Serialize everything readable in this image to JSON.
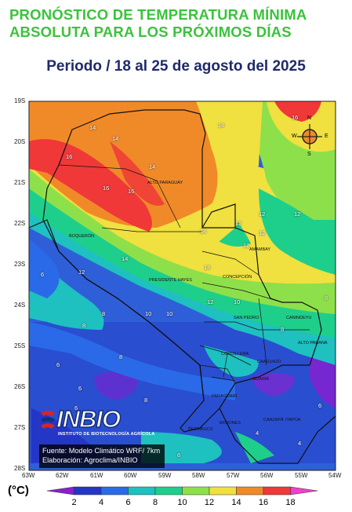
{
  "header": {
    "title_line1": "PRONÓSTICO DE TEMPERATURA MÍNIMA",
    "title_line2": "ABSOLUTA PARA LOS PRÓXIMOS DÍAS",
    "period": "Periodo / 18 al 25 de agosto del 2025"
  },
  "map": {
    "lat_labels": [
      "19S",
      "20S",
      "21S",
      "22S",
      "23S",
      "24S",
      "25S",
      "26S",
      "27S",
      "28S"
    ],
    "lon_labels": [
      "63W",
      "62W",
      "61W",
      "60W",
      "59W",
      "58W",
      "57W",
      "56W",
      "55W",
      "54W"
    ],
    "regions": [
      "ALTO PARAGUAY",
      "BOQUERÓN",
      "PRESIDENTE HAYES",
      "AMAMBAY",
      "CONCEPCIÓN",
      "SAN PEDRO",
      "CANINDEYU",
      "ALTO PARANÁ",
      "CORDILLERA",
      "CAAGUAZÚ",
      "PARAGUARÍ",
      "GUAIRÁ",
      "CAAZAPÁ",
      "MISIONES",
      "ITAPÚA",
      "ÑEEMBUCÚ"
    ],
    "contour_labels": [
      "14",
      "14",
      "14",
      "16",
      "16",
      "14",
      "16",
      "16",
      "14",
      "12",
      "12",
      "12",
      "14",
      "12",
      "14",
      "12",
      "12",
      "12",
      "10",
      "10",
      "10",
      "8",
      "8",
      "8",
      "8",
      "6",
      "6",
      "6",
      "6",
      "6",
      "4",
      "4",
      "6",
      "8",
      "8"
    ],
    "compass": {
      "n": "N",
      "s": "S",
      "e": "E",
      "w": "W"
    }
  },
  "credits": {
    "source": "Fuente: Modelo Climático WRF/ 7km",
    "elaboration": "Elaboración: Agroclima/INBIO",
    "logo_text": "INBIO",
    "logo_subtitle": "INSTITUTO DE BIOTECNOLOGÍA AGRÍCOLA"
  },
  "legend": {
    "unit": "(°C)",
    "ticks": [
      "2",
      "4",
      "6",
      "8",
      "10",
      "12",
      "14",
      "16",
      "18"
    ],
    "colors": [
      "#8a1ed0",
      "#2436c6",
      "#2a6ae8",
      "#1ec0c0",
      "#1ecf8c",
      "#8ee04a",
      "#f0e040",
      "#f08a28",
      "#f03838",
      "#f040c8"
    ]
  },
  "colors": {
    "title_green": "#3cc23c",
    "subtitle_navy": "#1f2a6b"
  }
}
